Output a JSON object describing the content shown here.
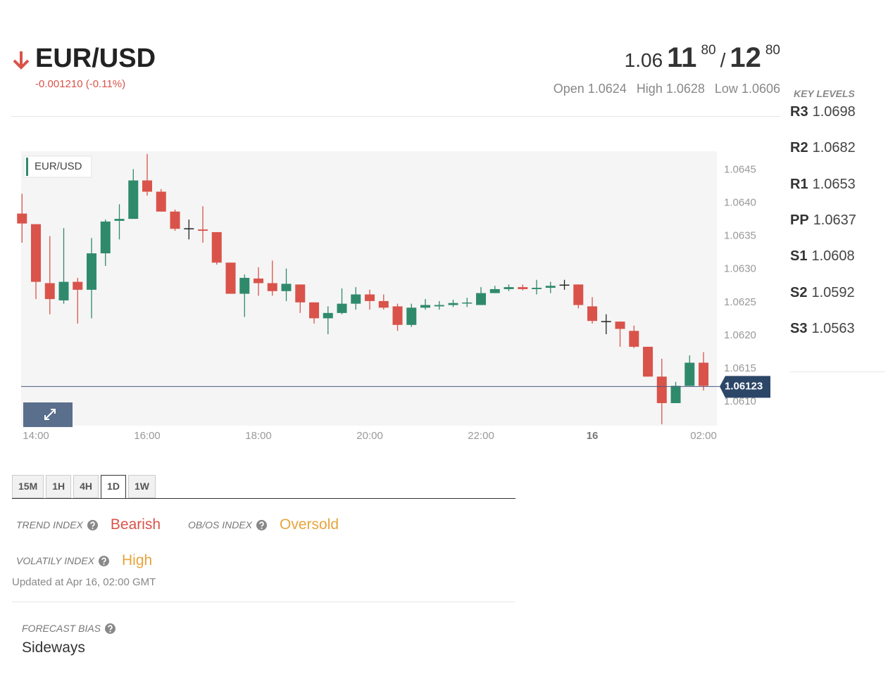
{
  "header": {
    "symbol": "EUR/USD",
    "change": "-0.001210 (-0.11%)"
  },
  "quote": {
    "bid": {
      "figure": "1.06",
      "pips": "11",
      "fraction": "80"
    },
    "separator": "/",
    "ask": {
      "pips": "12",
      "fraction": "80"
    }
  },
  "ohlc": [
    {
      "label": "Open",
      "value": 1.0624
    },
    {
      "label": "High",
      "value": 1.0628
    },
    {
      "label": "Low",
      "value": 1.0606
    }
  ],
  "key_levels": {
    "title": "KEY LEVELS",
    "levels": [
      {
        "name": "R3",
        "value": 1.0698
      },
      {
        "name": "R2",
        "value": 1.0682
      },
      {
        "name": "R1",
        "value": 1.0653
      },
      {
        "name": "PP",
        "value": 1.0637
      },
      {
        "name": "S1",
        "value": 1.0608
      },
      {
        "name": "S2",
        "value": 1.0592
      },
      {
        "name": "S3",
        "value": 1.0563
      }
    ]
  },
  "chart_data": {
    "type": "candlestick",
    "series": [
      {
        "name": "EUR/USD",
        "up_color": "#2f8a6c",
        "down_color": "#d9534a",
        "doji_color": "#222222",
        "x": [
          13.75,
          14,
          14.25,
          14.5,
          14.75,
          15,
          15.25,
          15.5,
          15.75,
          16,
          16.25,
          16.5,
          16.75,
          17,
          17.25,
          17.5,
          17.75,
          18,
          18.25,
          18.5,
          18.75,
          19,
          19.25,
          19.5,
          19.75,
          20,
          20.25,
          20.5,
          20.75,
          21,
          21.25,
          21.5,
          21.75,
          22,
          22.25,
          22.5,
          22.75,
          23,
          23.25,
          23.5,
          23.75,
          24,
          24.25,
          24.5,
          24.75,
          25,
          25.25,
          25.5,
          25.75,
          26
        ],
        "open": [
          1.06384,
          1.06368,
          1.06279,
          1.06253,
          1.06281,
          1.06269,
          1.06324,
          1.06373,
          1.06376,
          1.06434,
          1.06417,
          1.06387,
          1.06361,
          1.0636,
          1.06356,
          1.0631,
          1.06263,
          1.06286,
          1.06279,
          1.06267,
          1.06277,
          1.0625,
          1.06226,
          1.06234,
          1.06248,
          1.06262,
          1.06252,
          1.06244,
          1.06216,
          1.06242,
          1.06244,
          1.06246,
          1.06249,
          1.06246,
          1.06264,
          1.0627,
          1.06273,
          1.0627,
          1.06272,
          1.06276,
          1.06277,
          1.06244,
          1.06221,
          1.06221,
          1.06207,
          1.06183,
          1.06138,
          1.06098,
          1.06124,
          1.06159
        ],
        "high": [
          1.06414,
          1.06368,
          1.0635,
          1.06362,
          1.06287,
          1.06347,
          1.06375,
          1.06398,
          1.06451,
          1.06474,
          1.06421,
          1.0639,
          1.06375,
          1.06395,
          1.06356,
          1.0631,
          1.06292,
          1.06303,
          1.06313,
          1.06301,
          1.06277,
          1.0625,
          1.06244,
          1.06271,
          1.06273,
          1.06269,
          1.06262,
          1.06248,
          1.06248,
          1.06255,
          1.06252,
          1.06254,
          1.06257,
          1.06273,
          1.06275,
          1.06277,
          1.06277,
          1.06284,
          1.06281,
          1.06284,
          1.06277,
          1.06258,
          1.06232,
          1.06221,
          1.06215,
          1.06183,
          1.06165,
          1.0613,
          1.0617,
          1.06175
        ],
        "low": [
          1.0634,
          1.06255,
          1.06232,
          1.06248,
          1.06218,
          1.06226,
          1.06305,
          1.06345,
          1.06376,
          1.06411,
          1.06387,
          1.06358,
          1.06345,
          1.0634,
          1.06307,
          1.06263,
          1.06228,
          1.0626,
          1.0626,
          1.06252,
          1.06234,
          1.06218,
          1.06202,
          1.06232,
          1.06239,
          1.06239,
          1.06239,
          1.06207,
          1.06213,
          1.06239,
          1.06239,
          1.06243,
          1.06243,
          1.06246,
          1.06264,
          1.06267,
          1.06268,
          1.06262,
          1.06264,
          1.06269,
          1.06241,
          1.06218,
          1.06202,
          1.06183,
          1.06181,
          1.06138,
          1.06066,
          1.06098,
          1.06124,
          1.06117
        ],
        "close": [
          1.06369,
          1.06281,
          1.06255,
          1.06281,
          1.06269,
          1.06324,
          1.06372,
          1.06376,
          1.06434,
          1.06417,
          1.06387,
          1.06361,
          1.06361,
          1.06358,
          1.0631,
          1.06263,
          1.06287,
          1.06279,
          1.06267,
          1.06278,
          1.0625,
          1.06226,
          1.06234,
          1.06248,
          1.06262,
          1.06252,
          1.06242,
          1.06216,
          1.06242,
          1.06246,
          1.06246,
          1.06249,
          1.0625,
          1.06264,
          1.0627,
          1.06273,
          1.0627,
          1.06272,
          1.06275,
          1.06276,
          1.06246,
          1.06222,
          1.06221,
          1.0621,
          1.06183,
          1.06138,
          1.06098,
          1.06124,
          1.06159,
          1.06124
        ]
      }
    ],
    "current_price": 1.06123,
    "xlim": [
      13.734,
      26.24
    ],
    "ylim": [
      1.06064,
      1.06478
    ],
    "xticks": [
      {
        "value": 14,
        "label": "14:00"
      },
      {
        "value": 16,
        "label": "16:00"
      },
      {
        "value": 18,
        "label": "18:00"
      },
      {
        "value": 20,
        "label": "20:00"
      },
      {
        "value": 22,
        "label": "22:00"
      },
      {
        "value": 24,
        "label": "16"
      },
      {
        "value": 26,
        "label": "02:00"
      }
    ],
    "yticks": [
      {
        "value": 1.061,
        "label": "1.0610"
      },
      1.0615,
      {
        "value": 1.062,
        "label": "1.0620"
      },
      1.0625,
      {
        "value": 1.063,
        "label": "1.0630"
      },
      1.0635,
      {
        "value": 1.064,
        "label": "1.0640"
      },
      1.0645
    ],
    "grid": false
  },
  "tabs": {
    "items": [
      "15M",
      "1H",
      "4H",
      "1D",
      "1W"
    ],
    "active": 3
  },
  "indexes": [
    {
      "label": "TREND INDEX",
      "value": "Bearish",
      "color": "#d9534a"
    },
    {
      "label": "OB/OS INDEX",
      "value": "Oversold",
      "color": "#e8a43c"
    },
    {
      "label": "VOLATILY INDEX",
      "value": "High",
      "color": "#e8a43c"
    }
  ],
  "updated": "Updated at Apr 16, 02:00 GMT",
  "forecast": {
    "label": "FORECAST BIAS",
    "value": "Sideways"
  }
}
